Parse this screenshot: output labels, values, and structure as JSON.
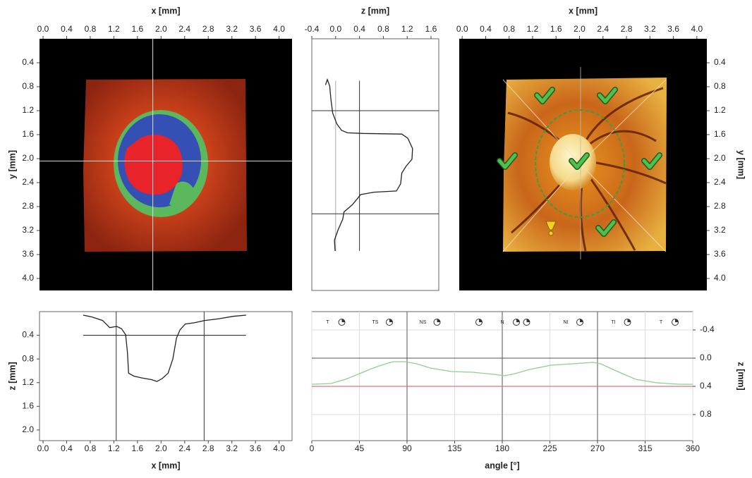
{
  "chart_data": [
    {
      "type": "image",
      "xlabel": "x [mm]",
      "ylabel": "y [mm]",
      "xlim": [
        -0.06,
        4.22
      ],
      "ylim": [
        0,
        4.2
      ],
      "y_inverted": true,
      "xticks": [
        {
          "value": 0,
          "label": "0.0"
        },
        0.4,
        0.8,
        1.2,
        1.6,
        {
          "value": 2,
          "label": "2.0"
        },
        2.4,
        2.8,
        3.2,
        3.6,
        {
          "value": 4,
          "label": "4.0"
        }
      ],
      "yticks": [
        0.4,
        0.8,
        1.2,
        1.6,
        {
          "value": 2,
          "label": "2.0"
        },
        2.4,
        2.8,
        3.2,
        3.6,
        {
          "value": 4,
          "label": "4.0"
        }
      ],
      "crosshair": {
        "x": 1.86,
        "y": 2.04
      }
    },
    {
      "type": "vprofile",
      "xlabel": "z [mm]",
      "xlim": [
        -0.4,
        1.73
      ],
      "ylim": [
        0,
        4.2
      ],
      "y_inverted": true,
      "xticks": [
        -0.4,
        {
          "value": 0,
          "label": "0.0"
        },
        0.4,
        0.8,
        1.2,
        1.6
      ],
      "series": [
        {
          "color": "#222",
          "y": [
            0.77,
            0.68,
            0.79,
            1.0,
            1.24,
            1.42,
            1.53,
            1.57,
            1.58,
            1.59,
            1.66,
            1.83,
            2.01,
            2.13,
            2.24,
            2.42,
            2.54,
            2.56,
            2.6,
            2.77,
            2.89,
            3.01,
            3.19,
            3.36,
            3.54
          ],
          "z": [
            -0.17,
            -0.14,
            -0.1,
            -0.08,
            -0.05,
            0.02,
            0.1,
            0.2,
            0.46,
            1.11,
            1.21,
            1.29,
            1.28,
            1.18,
            1.11,
            1.09,
            1.02,
            0.64,
            0.42,
            0.28,
            0.14,
            0.12,
            0.04,
            -0.02,
            -0.01
          ]
        }
      ],
      "reference_lines": [
        {
          "z": 0,
          "color": "#aaa"
        },
        {
          "z": 0.4,
          "color": "#333"
        }
      ],
      "marker_lines_y": [
        1.2,
        2.92
      ]
    },
    {
      "type": "image",
      "xlabel": "x [mm]",
      "ylabel": "y [mm]",
      "xlim": [
        -0.05,
        4.17
      ],
      "ylim": [
        0,
        4.2
      ],
      "y_inverted": true,
      "xticks": [
        {
          "value": 0,
          "label": "0.0"
        },
        0.4,
        0.8,
        1.2,
        1.6,
        {
          "value": 2,
          "label": "2.0"
        },
        2.4,
        2.8,
        3.2,
        3.6,
        {
          "value": 4,
          "label": "4.0"
        }
      ],
      "yticks": [
        0.4,
        0.8,
        1.2,
        1.6,
        {
          "value": 2,
          "label": "2.0"
        },
        2.4,
        2.8,
        3.2,
        3.6,
        {
          "value": 4,
          "label": "4.0"
        }
      ]
    },
    {
      "type": "line",
      "xlabel": "x [mm]",
      "ylabel": "z [mm]",
      "xlim": [
        -0.06,
        4.22
      ],
      "ylim": [
        0,
        2.18
      ],
      "y_inverted": true,
      "xticks": [
        {
          "value": 0,
          "label": "0.0"
        },
        0.4,
        0.8,
        1.2,
        1.6,
        {
          "value": 2,
          "label": "2.0"
        },
        2.4,
        2.8,
        3.2,
        3.6,
        {
          "value": 4,
          "label": "4.0"
        }
      ],
      "yticks": [
        0.4,
        0.8,
        1.2,
        1.6,
        {
          "value": 2,
          "label": "2.0"
        }
      ],
      "color": "#222",
      "x": [
        0.68,
        0.83,
        1.01,
        1.13,
        1.25,
        1.33,
        1.4,
        1.43,
        1.45,
        1.54,
        1.67,
        1.84,
        1.93,
        2.02,
        2.12,
        2.2,
        2.26,
        2.32,
        2.41,
        2.56,
        2.74,
        2.98,
        3.22,
        3.44
      ],
      "values": [
        0.06,
        0.09,
        0.15,
        0.27,
        0.25,
        0.29,
        0.39,
        0.68,
        1.04,
        1.09,
        1.12,
        1.15,
        1.18,
        1.13,
        1.04,
        0.8,
        0.45,
        0.31,
        0.21,
        0.19,
        0.15,
        0.12,
        0.08,
        0.06
      ],
      "reference_lines": [
        {
          "z": 0.4,
          "color": "#333"
        }
      ],
      "marker_lines_x": [
        1.24,
        2.73
      ]
    },
    {
      "type": "line",
      "xlabel": "angle [°]",
      "ylabel": "z [mm]",
      "xlim": [
        0,
        360
      ],
      "ylim": [
        -0.66,
        1.17
      ],
      "y_inverted": true,
      "xticks": [
        0,
        45,
        90,
        135,
        180,
        225,
        270,
        315,
        360
      ],
      "yticks": [
        -0.4,
        {
          "value": 0,
          "label": "0.0"
        },
        0.4,
        0.8
      ],
      "grid": true,
      "color": "#8fce8f",
      "x": [
        0,
        18,
        32,
        45,
        58,
        72,
        77,
        88,
        99,
        112,
        132,
        152,
        172,
        182,
        192,
        206,
        226,
        246,
        266,
        273,
        286,
        306,
        326,
        347,
        360
      ],
      "values": [
        0.37,
        0.36,
        0.3,
        0.22,
        0.14,
        0.07,
        0.05,
        0.05,
        0.08,
        0.14,
        0.19,
        0.2,
        0.23,
        0.25,
        0.22,
        0.16,
        0.1,
        0.08,
        0.06,
        0.08,
        0.17,
        0.3,
        0.35,
        0.37,
        0.37
      ],
      "reference_lines": [
        {
          "z": 0.4,
          "color": "#d9737a"
        }
      ],
      "major_lines_x": [
        90,
        180,
        270
      ],
      "major_lines_z": [
        0
      ],
      "sector_labels": [
        "T",
        "TS",
        "NS",
        "N",
        "NI",
        "TI",
        "T"
      ]
    }
  ]
}
